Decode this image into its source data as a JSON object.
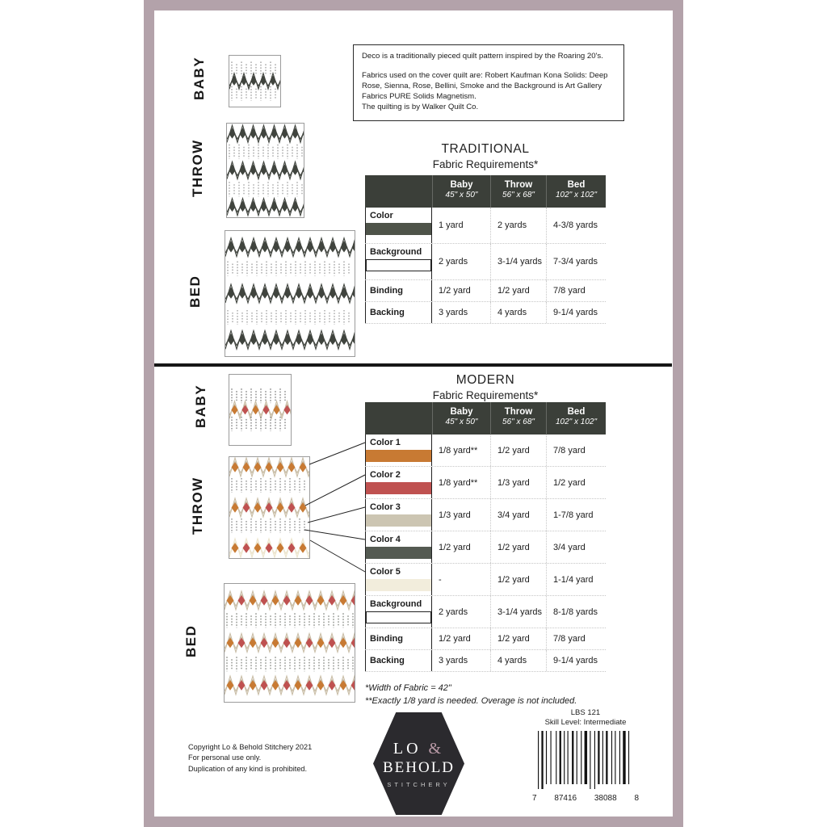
{
  "palette": {
    "frame": "#b3a2aa",
    "header_bg": "#3b3f39",
    "trad_dark": "#40443e",
    "trad_dot": "#8b8b8b",
    "orange": "#c87a33",
    "red": "#bf5150",
    "tan": "#c9bda6",
    "gray": "#6b6f67",
    "cream": "#ece4cc",
    "logo_bg": "#2b2a2e",
    "logo_accent": "#b899a6"
  },
  "intro": {
    "para1": "Deco is a traditionally pieced quilt pattern inspired by the Roaring 20's.",
    "para2": "Fabrics used on the cover quilt are: Robert Kaufman Kona Solids: Deep Rose, Sienna, Rose, Bellini, Smoke and the Background is Art Gallery Fabrics PURE Solids Magnetism.",
    "para3": "The quilting is by Walker Quilt Co."
  },
  "labels": {
    "baby": "BABY",
    "throw": "THROW",
    "bed": "BED"
  },
  "traditional": {
    "title": "TRADITIONAL",
    "subtitle": "Fabric Requirements*",
    "columns": [
      {
        "name": "Baby",
        "size": "45\" x 50\""
      },
      {
        "name": "Throw",
        "size": "56\" x 68\""
      },
      {
        "name": "Bed",
        "size": "102\" x 102\""
      }
    ],
    "rows": [
      {
        "label": "Color",
        "swatch": "#4e5349",
        "swatch_border": false,
        "values": [
          "1 yard",
          "2 yards",
          "4-3/8 yards"
        ]
      },
      {
        "label": "Background",
        "swatch": "#ffffff",
        "swatch_border": true,
        "values": [
          "2 yards",
          "3-1/4 yards",
          "7-3/4 yards"
        ]
      },
      {
        "label": "Binding",
        "values": [
          "1/2 yard",
          "1/2 yard",
          "7/8 yard"
        ]
      },
      {
        "label": "Backing",
        "values": [
          "3 yards",
          "4 yards",
          "9-1/4 yards"
        ]
      }
    ]
  },
  "modern": {
    "title": "MODERN",
    "subtitle": "Fabric Requirements*",
    "columns": [
      {
        "name": "Baby",
        "size": "45\" x 50\""
      },
      {
        "name": "Throw",
        "size": "56\" x 68\""
      },
      {
        "name": "Bed",
        "size": "102\" x 102\""
      }
    ],
    "rows": [
      {
        "label": "Color 1",
        "swatch": "#c87a33",
        "swatch_border": false,
        "values": [
          "1/8 yard**",
          "1/2 yard",
          "7/8 yard"
        ]
      },
      {
        "label": "Color 2",
        "swatch": "#bf5150",
        "swatch_border": false,
        "values": [
          "1/8 yard**",
          "1/3 yard",
          "1/2 yard"
        ]
      },
      {
        "label": "Color 3",
        "swatch": "#ccc5b2",
        "swatch_border": false,
        "values": [
          "1/3 yard",
          "3/4 yard",
          "1-7/8 yard"
        ]
      },
      {
        "label": "Color 4",
        "swatch": "#545a52",
        "swatch_border": false,
        "values": [
          "1/2 yard",
          "1/2 yard",
          "3/4 yard"
        ]
      },
      {
        "label": "Color 5",
        "swatch": "#f2eddc",
        "swatch_border": false,
        "values": [
          "-",
          "1/2 yard",
          "1-1/4 yard"
        ]
      },
      {
        "label": "Background",
        "swatch": "#ffffff",
        "swatch_border": true,
        "values": [
          "2 yards",
          "3-1/4 yards",
          "8-1/8 yards"
        ]
      },
      {
        "label": "Binding",
        "values": [
          "1/2 yard",
          "1/2 yard",
          "7/8 yard"
        ]
      },
      {
        "label": "Backing",
        "values": [
          "3 yards",
          "4 yards",
          "9-1/4 yards"
        ]
      }
    ],
    "footnote1": "*Width of Fabric = 42\"",
    "footnote2": "**Exactly 1/8 yard is needed. Overage is not included."
  },
  "footer": {
    "copyright1": "Copyright Lo & Behold Stitchery 2021",
    "copyright2": "For personal use only.",
    "copyright3": "Duplication of any kind is prohibited.",
    "logo": {
      "line1": "LO ",
      "amp": "&",
      "line2": "BEHOLD",
      "line3": "STITCHERY"
    },
    "product_code": "LBS 121",
    "skill_level": "Skill Level: Intermediate",
    "barcode": {
      "d1": "7",
      "d2": "87416",
      "d3": "38088",
      "d4": "8"
    }
  }
}
